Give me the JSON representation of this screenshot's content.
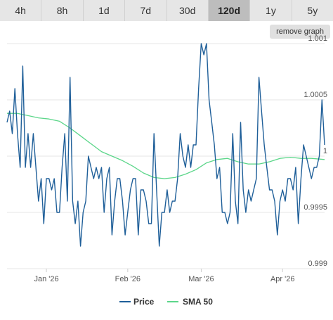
{
  "toolbar": {
    "tabs": [
      {
        "label": "4h",
        "active": false
      },
      {
        "label": "8h",
        "active": false
      },
      {
        "label": "1d",
        "active": false
      },
      {
        "label": "7d",
        "active": false
      },
      {
        "label": "30d",
        "active": false
      },
      {
        "label": "120d",
        "active": true
      },
      {
        "label": "1y",
        "active": false
      },
      {
        "label": "5y",
        "active": false
      }
    ],
    "remove_graph_label": "remove graph"
  },
  "colors": {
    "price": "#1f5f99",
    "sma": "#5cd68a",
    "grid": "#e6e6e6",
    "active_tab": "#bdbdbd",
    "tab": "#e6e6e6"
  },
  "chart_data": {
    "type": "line",
    "ylim": [
      0.999,
      1.001
    ],
    "y_ticks": [
      {
        "value": 1.001,
        "label": "1.001"
      },
      {
        "value": 1.0005,
        "label": "1.0005"
      },
      {
        "value": 1.0,
        "label": "1"
      },
      {
        "value": 0.9995,
        "label": "0.9995"
      },
      {
        "value": 0.999,
        "label": "0.999"
      }
    ],
    "x_range": [
      "2025-12-17",
      "2026-04-17"
    ],
    "x_ticks": [
      {
        "date": "2026-01-01",
        "label": "Jan '26"
      },
      {
        "date": "2026-02-01",
        "label": "Feb '26"
      },
      {
        "date": "2026-03-01",
        "label": "Mar '26"
      },
      {
        "date": "2026-04-01",
        "label": "Apr '26"
      }
    ],
    "grid": true,
    "legend_position": "bottom",
    "series": [
      {
        "name": "Price",
        "color": "#1f5f99",
        "points": [
          [
            "2025-12-17",
            1.0003
          ],
          [
            "2025-12-18",
            1.0004
          ],
          [
            "2025-12-19",
            1.0002
          ],
          [
            "2025-12-20",
            1.0006
          ],
          [
            "2025-12-21",
            1.0002
          ],
          [
            "2025-12-22",
            0.9999
          ],
          [
            "2025-12-23",
            1.0008
          ],
          [
            "2025-12-24",
            0.9999
          ],
          [
            "2025-12-25",
            1.0002
          ],
          [
            "2025-12-26",
            0.9999
          ],
          [
            "2025-12-27",
            1.0002
          ],
          [
            "2025-12-28",
            0.9999
          ],
          [
            "2025-12-29",
            0.9996
          ],
          [
            "2025-12-30",
            0.9998
          ],
          [
            "2025-12-31",
            0.9994
          ],
          [
            "2026-01-01",
            0.9998
          ],
          [
            "2026-01-02",
            0.9998
          ],
          [
            "2026-01-03",
            0.9997
          ],
          [
            "2026-01-04",
            0.9998
          ],
          [
            "2026-01-05",
            0.9995
          ],
          [
            "2026-01-06",
            0.9995
          ],
          [
            "2026-01-07",
            0.9999
          ],
          [
            "2026-01-08",
            1.0002
          ],
          [
            "2026-01-09",
            0.9996
          ],
          [
            "2026-01-10",
            1.0007
          ],
          [
            "2026-01-11",
            0.9996
          ],
          [
            "2026-01-12",
            0.9994
          ],
          [
            "2026-01-13",
            0.9996
          ],
          [
            "2026-01-14",
            0.9992
          ],
          [
            "2026-01-15",
            0.9995
          ],
          [
            "2026-01-16",
            0.9996
          ],
          [
            "2026-01-17",
            1.0
          ],
          [
            "2026-01-18",
            0.9999
          ],
          [
            "2026-01-19",
            0.9998
          ],
          [
            "2026-01-20",
            0.9999
          ],
          [
            "2026-01-21",
            0.9998
          ],
          [
            "2026-01-22",
            0.9999
          ],
          [
            "2026-01-23",
            0.9995
          ],
          [
            "2026-01-24",
            0.9998
          ],
          [
            "2026-01-25",
            0.9999
          ],
          [
            "2026-01-26",
            0.9993
          ],
          [
            "2026-01-27",
            0.9996
          ],
          [
            "2026-01-28",
            0.9998
          ],
          [
            "2026-01-29",
            0.9998
          ],
          [
            "2026-01-30",
            0.9996
          ],
          [
            "2026-01-31",
            0.9993
          ],
          [
            "2026-02-01",
            0.9995
          ],
          [
            "2026-02-02",
            0.9997
          ],
          [
            "2026-02-03",
            0.9998
          ],
          [
            "2026-02-04",
            0.9998
          ],
          [
            "2026-02-05",
            0.9993
          ],
          [
            "2026-02-06",
            0.9997
          ],
          [
            "2026-02-07",
            0.9997
          ],
          [
            "2026-02-08",
            0.9996
          ],
          [
            "2026-02-09",
            0.9994
          ],
          [
            "2026-02-10",
            0.9994
          ],
          [
            "2026-02-11",
            1.0002
          ],
          [
            "2026-02-12",
            0.9997
          ],
          [
            "2026-02-13",
            0.9992
          ],
          [
            "2026-02-14",
            0.9995
          ],
          [
            "2026-02-15",
            0.9995
          ],
          [
            "2026-02-16",
            0.9997
          ],
          [
            "2026-02-17",
            0.9995
          ],
          [
            "2026-02-18",
            0.9996
          ],
          [
            "2026-02-19",
            0.9996
          ],
          [
            "2026-02-20",
            0.9998
          ],
          [
            "2026-02-21",
            1.0002
          ],
          [
            "2026-02-22",
            1.0
          ],
          [
            "2026-02-23",
            0.9999
          ],
          [
            "2026-02-24",
            1.0001
          ],
          [
            "2026-02-25",
            0.9999
          ],
          [
            "2026-02-26",
            1.0001
          ],
          [
            "2026-02-27",
            1.0001
          ],
          [
            "2026-02-28",
            1.0006
          ],
          [
            "2026-03-01",
            1.001
          ],
          [
            "2026-03-02",
            1.0009
          ],
          [
            "2026-03-03",
            1.001
          ],
          [
            "2026-03-04",
            1.0005
          ],
          [
            "2026-03-05",
            1.0003
          ],
          [
            "2026-03-06",
            1.0001
          ],
          [
            "2026-03-07",
            0.9998
          ],
          [
            "2026-03-08",
            0.9999
          ],
          [
            "2026-03-09",
            0.9995
          ],
          [
            "2026-03-10",
            0.9995
          ],
          [
            "2026-03-11",
            0.9994
          ],
          [
            "2026-03-12",
            0.9995
          ],
          [
            "2026-03-13",
            1.0002
          ],
          [
            "2026-03-14",
            0.9996
          ],
          [
            "2026-03-15",
            0.9994
          ],
          [
            "2026-03-16",
            1.0003
          ],
          [
            "2026-03-17",
            0.9997
          ],
          [
            "2026-03-18",
            0.9995
          ],
          [
            "2026-03-19",
            0.9997
          ],
          [
            "2026-03-20",
            0.9996
          ],
          [
            "2026-03-21",
            0.9997
          ],
          [
            "2026-03-22",
            0.9998
          ],
          [
            "2026-03-23",
            1.0007
          ],
          [
            "2026-03-24",
            1.0004
          ],
          [
            "2026-03-25",
            1.0001
          ],
          [
            "2026-03-26",
            0.9999
          ],
          [
            "2026-03-27",
            0.9997
          ],
          [
            "2026-03-28",
            0.9997
          ],
          [
            "2026-03-29",
            0.9996
          ],
          [
            "2026-03-30",
            0.9993
          ],
          [
            "2026-03-31",
            0.9996
          ],
          [
            "2026-04-01",
            0.9997
          ],
          [
            "2026-04-02",
            0.9996
          ],
          [
            "2026-04-03",
            0.9998
          ],
          [
            "2026-04-04",
            0.9998
          ],
          [
            "2026-04-05",
            0.9997
          ],
          [
            "2026-04-06",
            0.9999
          ],
          [
            "2026-04-07",
            0.9994
          ],
          [
            "2026-04-08",
            0.9998
          ],
          [
            "2026-04-09",
            1.0001
          ],
          [
            "2026-04-10",
            1.0
          ],
          [
            "2026-04-11",
            0.9999
          ],
          [
            "2026-04-12",
            0.9998
          ],
          [
            "2026-04-13",
            0.9999
          ],
          [
            "2026-04-14",
            0.9999
          ],
          [
            "2026-04-15",
            1.0
          ],
          [
            "2026-04-16",
            1.0005
          ],
          [
            "2026-04-17",
            1.0001
          ]
        ]
      },
      {
        "name": "SMA 50",
        "color": "#5cd68a",
        "points": [
          [
            "2025-12-17",
            1.00038
          ],
          [
            "2025-12-21",
            1.00038
          ],
          [
            "2025-12-25",
            1.00036
          ],
          [
            "2025-12-29",
            1.00034
          ],
          [
            "2026-01-02",
            1.00033
          ],
          [
            "2026-01-06",
            1.00031
          ],
          [
            "2026-01-10",
            1.00025
          ],
          [
            "2026-01-14",
            1.00018
          ],
          [
            "2026-01-18",
            1.00011
          ],
          [
            "2026-01-22",
            1.00004
          ],
          [
            "2026-01-26",
            1.0
          ],
          [
            "2026-01-30",
            0.99996
          ],
          [
            "2026-02-03",
            0.99991
          ],
          [
            "2026-02-07",
            0.99985
          ],
          [
            "2026-02-11",
            0.99981
          ],
          [
            "2026-02-15",
            0.9998
          ],
          [
            "2026-02-19",
            0.99981
          ],
          [
            "2026-02-23",
            0.99984
          ],
          [
            "2026-02-27",
            0.99988
          ],
          [
            "2026-03-03",
            0.99994
          ],
          [
            "2026-03-07",
            0.99997
          ],
          [
            "2026-03-11",
            0.99998
          ],
          [
            "2026-03-15",
            0.99995
          ],
          [
            "2026-03-19",
            0.99993
          ],
          [
            "2026-03-23",
            0.99993
          ],
          [
            "2026-03-27",
            0.99995
          ],
          [
            "2026-03-31",
            0.99998
          ],
          [
            "2026-04-04",
            0.99999
          ],
          [
            "2026-04-08",
            0.99998
          ],
          [
            "2026-04-12",
            0.99998
          ],
          [
            "2026-04-17",
            0.99997
          ]
        ]
      }
    ]
  }
}
